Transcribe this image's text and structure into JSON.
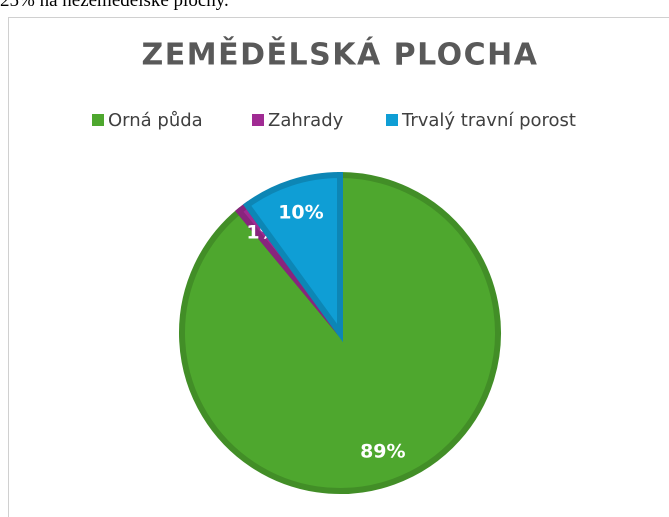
{
  "page_text": "25% na nezemědělské plochy.",
  "chart_data": {
    "type": "pie",
    "title": "ZEMĚDĚLSKÁ PLOCHA",
    "categories": [
      "Orná půda",
      "Zahrady",
      "Trvalý travní porost"
    ],
    "values": [
      89,
      1,
      10
    ],
    "value_labels": [
      "89%",
      "1%",
      "10%"
    ],
    "colors": [
      "#4ea72e",
      "#a02b93",
      "#0f9ed5"
    ],
    "legend": "top"
  }
}
